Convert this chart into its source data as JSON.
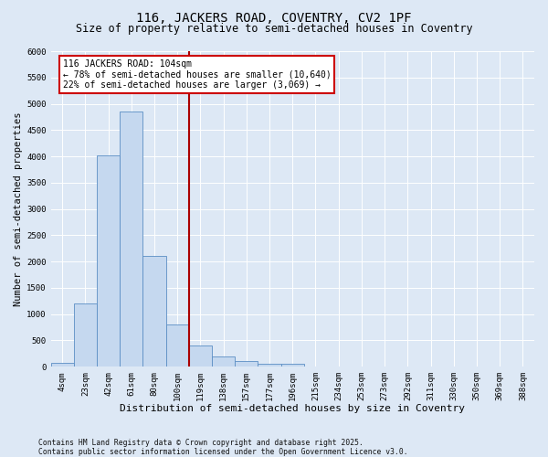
{
  "title": "116, JACKERS ROAD, COVENTRY, CV2 1PF",
  "subtitle": "Size of property relative to semi-detached houses in Coventry",
  "xlabel": "Distribution of semi-detached houses by size in Coventry",
  "ylabel": "Number of semi-detached properties",
  "categories": [
    "4sqm",
    "23sqm",
    "42sqm",
    "61sqm",
    "80sqm",
    "100sqm",
    "119sqm",
    "138sqm",
    "157sqm",
    "177sqm",
    "196sqm",
    "215sqm",
    "234sqm",
    "253sqm",
    "273sqm",
    "292sqm",
    "311sqm",
    "330sqm",
    "350sqm",
    "369sqm",
    "388sqm"
  ],
  "values": [
    70,
    1200,
    4020,
    4850,
    2100,
    810,
    400,
    200,
    110,
    60,
    50,
    0,
    0,
    0,
    0,
    0,
    0,
    0,
    0,
    0,
    0
  ],
  "bar_color": "#c5d8ef",
  "bar_edge_color": "#5b8ec4",
  "annotation_text": "116 JACKERS ROAD: 104sqm\n← 78% of semi-detached houses are smaller (10,640)\n22% of semi-detached houses are larger (3,069) →",
  "annotation_box_color": "#ffffff",
  "annotation_box_edge": "#cc0000",
  "vline_color": "#aa0000",
  "vline_x": 5.5,
  "background_color": "#dde8f5",
  "plot_bg_color": "#dde8f5",
  "ylim": [
    0,
    6000
  ],
  "yticks": [
    0,
    500,
    1000,
    1500,
    2000,
    2500,
    3000,
    3500,
    4000,
    4500,
    5000,
    5500,
    6000
  ],
  "footer": "Contains HM Land Registry data © Crown copyright and database right 2025.\nContains public sector information licensed under the Open Government Licence v3.0.",
  "title_fontsize": 10,
  "subtitle_fontsize": 8.5,
  "xlabel_fontsize": 8,
  "ylabel_fontsize": 7.5,
  "tick_fontsize": 6.5,
  "annotation_fontsize": 7,
  "footer_fontsize": 5.8
}
